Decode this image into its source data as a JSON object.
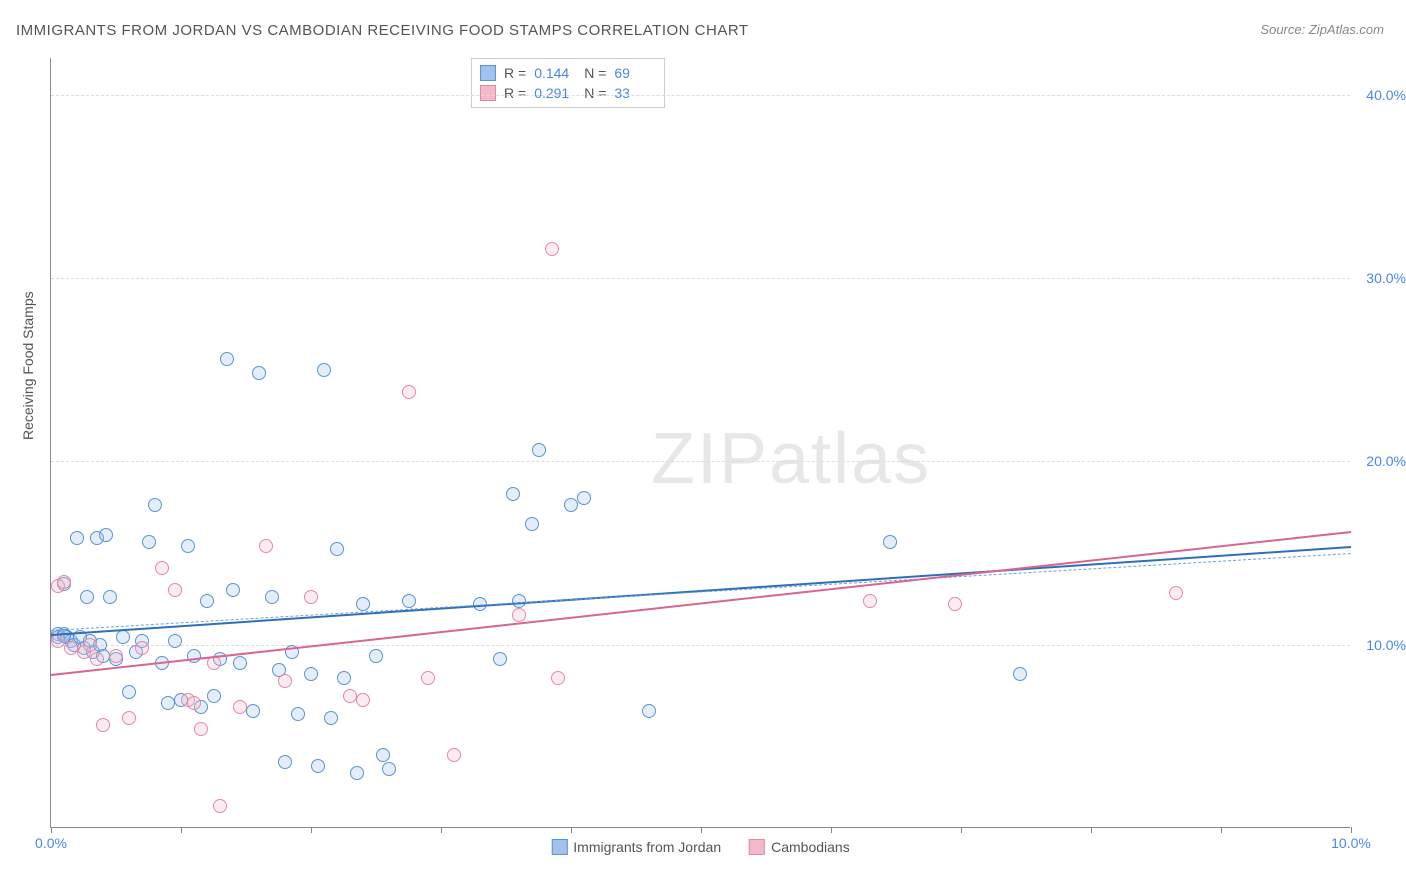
{
  "title": "IMMIGRANTS FROM JORDAN VS CAMBODIAN RECEIVING FOOD STAMPS CORRELATION CHART",
  "source_label": "Source:",
  "source_name": "ZipAtlas.com",
  "y_axis_title": "Receiving Food Stamps",
  "watermark_a": "ZIP",
  "watermark_b": "atlas",
  "chart": {
    "type": "scatter",
    "xlim": [
      0,
      10
    ],
    "ylim": [
      0,
      42
    ],
    "x_ticks": [
      0,
      1,
      2,
      3,
      4,
      5,
      6,
      7,
      8,
      9,
      10
    ],
    "x_tick_labels": {
      "0": "0.0%",
      "10": "10.0%"
    },
    "y_gridlines": [
      10,
      20,
      30,
      40
    ],
    "y_tick_labels": {
      "10": "10.0%",
      "20": "20.0%",
      "30": "30.0%",
      "40": "40.0%"
    },
    "background_color": "#ffffff",
    "grid_color": "#dddddd",
    "axis_color": "#888888",
    "tick_label_color": "#4a86e8",
    "marker_radius": 7,
    "marker_border_width": 1.2,
    "marker_fill_opacity": 0.28
  },
  "series": [
    {
      "name": "Immigrants from Jordan",
      "color_fill": "#9fc3ec",
      "color_stroke": "#5b93d6",
      "R_label": "R =",
      "R": "0.144",
      "N_label": "N =",
      "N": "69",
      "trend": {
        "x1": 0,
        "y1": 10.6,
        "x2": 10,
        "y2": 15.4,
        "color": "#2f6fb7",
        "width": 2
      },
      "trend_upper_dash": {
        "x1": 0,
        "y1": 10.8,
        "x2": 10,
        "y2": 15.0,
        "color": "#6fa0d8"
      },
      "points": [
        [
          0.05,
          10.6
        ],
        [
          0.05,
          10.4
        ],
        [
          0.1,
          10.6
        ],
        [
          0.1,
          13.3
        ],
        [
          0.12,
          10.4
        ],
        [
          0.15,
          10.2
        ],
        [
          0.18,
          10.0
        ],
        [
          0.2,
          15.8
        ],
        [
          0.22,
          10.4
        ],
        [
          0.25,
          9.8
        ],
        [
          0.28,
          12.6
        ],
        [
          0.3,
          10.2
        ],
        [
          0.32,
          9.6
        ],
        [
          0.35,
          15.8
        ],
        [
          0.38,
          10.0
        ],
        [
          0.4,
          9.4
        ],
        [
          0.42,
          16.0
        ],
        [
          0.45,
          12.6
        ],
        [
          0.5,
          9.2
        ],
        [
          0.55,
          10.4
        ],
        [
          0.6,
          7.4
        ],
        [
          0.65,
          9.6
        ],
        [
          0.7,
          10.2
        ],
        [
          0.75,
          15.6
        ],
        [
          0.8,
          17.6
        ],
        [
          0.85,
          9.0
        ],
        [
          0.9,
          6.8
        ],
        [
          0.95,
          10.2
        ],
        [
          1.0,
          7.0
        ],
        [
          1.05,
          15.4
        ],
        [
          1.1,
          9.4
        ],
        [
          1.15,
          6.6
        ],
        [
          1.2,
          12.4
        ],
        [
          1.25,
          7.2
        ],
        [
          1.3,
          9.2
        ],
        [
          1.35,
          25.6
        ],
        [
          1.4,
          13.0
        ],
        [
          1.45,
          9.0
        ],
        [
          1.55,
          6.4
        ],
        [
          1.6,
          24.8
        ],
        [
          1.7,
          12.6
        ],
        [
          1.75,
          8.6
        ],
        [
          1.8,
          3.6
        ],
        [
          1.85,
          9.6
        ],
        [
          1.9,
          6.2
        ],
        [
          2.0,
          8.4
        ],
        [
          2.05,
          3.4
        ],
        [
          2.1,
          25.0
        ],
        [
          2.15,
          6.0
        ],
        [
          2.2,
          15.2
        ],
        [
          2.25,
          8.2
        ],
        [
          2.35,
          3.0
        ],
        [
          2.4,
          12.2
        ],
        [
          2.5,
          9.4
        ],
        [
          2.55,
          4.0
        ],
        [
          2.6,
          3.2
        ],
        [
          2.75,
          12.4
        ],
        [
          3.3,
          12.2
        ],
        [
          3.45,
          9.2
        ],
        [
          3.55,
          18.2
        ],
        [
          3.6,
          12.4
        ],
        [
          3.7,
          16.6
        ],
        [
          3.75,
          20.6
        ],
        [
          4.0,
          17.6
        ],
        [
          4.1,
          18.0
        ],
        [
          4.6,
          6.4
        ],
        [
          6.45,
          15.6
        ],
        [
          7.45,
          8.4
        ],
        [
          0.1,
          10.5
        ]
      ]
    },
    {
      "name": "Cambodians",
      "color_fill": "#f3b9c8",
      "color_stroke": "#e389a4",
      "R_label": "R =",
      "R": "0.291",
      "N_label": "N =",
      "N": "33",
      "trend": {
        "x1": 0,
        "y1": 8.4,
        "x2": 10,
        "y2": 16.2,
        "color": "#d76690",
        "width": 2
      },
      "points": [
        [
          0.05,
          13.2
        ],
        [
          0.05,
          10.2
        ],
        [
          0.1,
          13.4
        ],
        [
          0.15,
          9.8
        ],
        [
          0.25,
          9.6
        ],
        [
          0.3,
          10.0
        ],
        [
          0.35,
          9.2
        ],
        [
          0.4,
          5.6
        ],
        [
          0.5,
          9.4
        ],
        [
          0.6,
          6.0
        ],
        [
          0.7,
          9.8
        ],
        [
          0.85,
          14.2
        ],
        [
          0.95,
          13.0
        ],
        [
          1.05,
          7.0
        ],
        [
          1.1,
          6.8
        ],
        [
          1.15,
          5.4
        ],
        [
          1.25,
          9.0
        ],
        [
          1.3,
          1.2
        ],
        [
          1.45,
          6.6
        ],
        [
          1.65,
          15.4
        ],
        [
          1.8,
          8.0
        ],
        [
          2.0,
          12.6
        ],
        [
          2.3,
          7.2
        ],
        [
          2.4,
          7.0
        ],
        [
          2.75,
          23.8
        ],
        [
          2.9,
          8.2
        ],
        [
          3.1,
          4.0
        ],
        [
          3.6,
          11.6
        ],
        [
          3.85,
          31.6
        ],
        [
          3.9,
          8.2
        ],
        [
          6.3,
          12.4
        ],
        [
          6.95,
          12.2
        ],
        [
          8.65,
          12.8
        ]
      ]
    }
  ],
  "bottom_legend": [
    {
      "label": "Immigrants from Jordan",
      "fill": "#9fc3ec",
      "stroke": "#5b93d6"
    },
    {
      "label": "Cambodians",
      "fill": "#f3b9c8",
      "stroke": "#e389a4"
    }
  ]
}
